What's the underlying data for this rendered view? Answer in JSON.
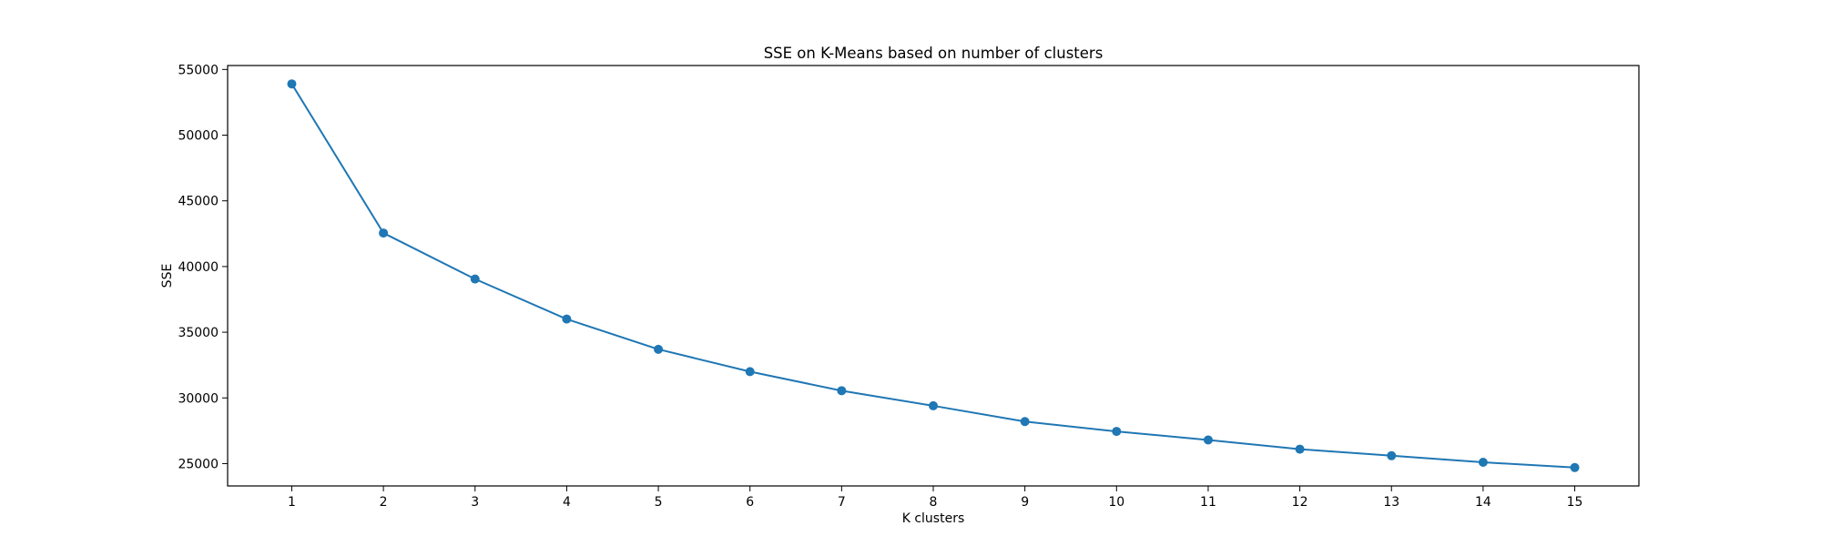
{
  "chart_data": {
    "type": "line",
    "title": "SSE on K-Means based on number of clusters",
    "xlabel": "K clusters",
    "ylabel": "SSE",
    "x": [
      1,
      2,
      3,
      4,
      5,
      6,
      7,
      8,
      9,
      10,
      11,
      12,
      13,
      14,
      15
    ],
    "series": [
      {
        "values": [
          53900,
          42550,
          39050,
          36000,
          33700,
          32000,
          30550,
          29400,
          28200,
          27450,
          26800,
          26100,
          25600,
          25100,
          24700
        ],
        "color": "#1f77b4",
        "marker": "circle"
      }
    ],
    "xlim": [
      0.3,
      15.7
    ],
    "ylim": [
      23300,
      55300
    ],
    "xticks": [
      1,
      2,
      3,
      4,
      5,
      6,
      7,
      8,
      9,
      10,
      11,
      12,
      13,
      14,
      15
    ],
    "yticks": [
      25000,
      30000,
      35000,
      40000,
      45000,
      50000,
      55000
    ],
    "grid": false,
    "legend": "none"
  }
}
